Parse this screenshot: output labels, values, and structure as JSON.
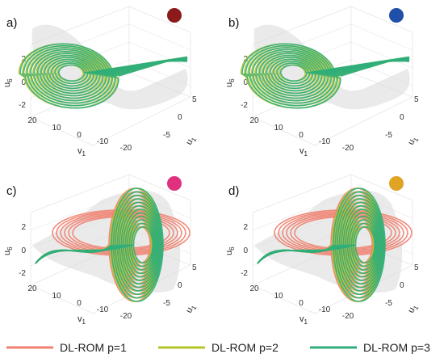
{
  "colors": {
    "p1": "#f07f6e",
    "p2": "#b5c428",
    "p3": "#2fae7b",
    "surface": "#d8d8d8",
    "grid": "#e6e6e6",
    "axis": "#555555"
  },
  "legend": {
    "items": [
      {
        "label": "DL-ROM p=1",
        "color": "#f07f6e"
      },
      {
        "label": "DL-ROM p=2",
        "color": "#b5c428"
      },
      {
        "label": "DL-ROM p=3",
        "color": "#2fae7b"
      }
    ]
  },
  "chart_data": [
    {
      "type": "line",
      "panel_label": "a)",
      "marker_color": "#8b1a1a",
      "view": "front",
      "xlabel": "v1",
      "ylabel": "u1",
      "zlabel": "u6",
      "xticks": [
        "20",
        "10",
        "0",
        "-10",
        "-20"
      ],
      "yticks": [
        "5",
        "0",
        "-5"
      ],
      "zticks": [
        "2",
        "0",
        "-2"
      ],
      "xlim": [
        -25,
        25
      ],
      "ylim": [
        -8,
        8
      ],
      "zlim": [
        -3,
        3
      ],
      "series": [
        {
          "name": "DL-ROM p=1",
          "visible": false
        },
        {
          "name": "DL-ROM p=2",
          "visible": true
        },
        {
          "name": "DL-ROM p=3",
          "visible": true
        }
      ]
    },
    {
      "type": "line",
      "panel_label": "b)",
      "marker_color": "#1f4fa8",
      "view": "front",
      "xlabel": "v1",
      "ylabel": "u1",
      "zlabel": "u6",
      "xticks": [
        "20",
        "10",
        "0",
        "-10",
        "-20"
      ],
      "yticks": [
        "5",
        "0",
        "-5"
      ],
      "zticks": [
        "2",
        "0",
        "-2"
      ],
      "xlim": [
        -25,
        25
      ],
      "ylim": [
        -8,
        8
      ],
      "zlim": [
        -3,
        3
      ],
      "series": [
        {
          "name": "DL-ROM p=1",
          "visible": false
        },
        {
          "name": "DL-ROM p=2",
          "visible": true
        },
        {
          "name": "DL-ROM p=3",
          "visible": true
        }
      ]
    },
    {
      "type": "line",
      "panel_label": "c)",
      "marker_color": "#e0317f",
      "view": "side",
      "xlabel": "v1",
      "ylabel": "u1",
      "zlabel": "u6",
      "xticks": [
        "20",
        "10",
        "0",
        "-10",
        "-20"
      ],
      "yticks": [
        "5",
        "0",
        "-5"
      ],
      "zticks": [
        "2",
        "0",
        "-2"
      ],
      "xlim": [
        -25,
        25
      ],
      "ylim": [
        -8,
        8
      ],
      "zlim": [
        -3,
        3
      ],
      "series": [
        {
          "name": "DL-ROM p=1",
          "visible": true
        },
        {
          "name": "DL-ROM p=2",
          "visible": true
        },
        {
          "name": "DL-ROM p=3",
          "visible": true
        }
      ]
    },
    {
      "type": "line",
      "panel_label": "d)",
      "marker_color": "#e0a324",
      "view": "side",
      "xlabel": "v1",
      "ylabel": "u1",
      "zlabel": "u6",
      "xticks": [
        "20",
        "10",
        "0",
        "-10",
        "-20"
      ],
      "yticks": [
        "5",
        "0",
        "-5"
      ],
      "zticks": [
        "2",
        "0",
        "-2"
      ],
      "xlim": [
        -25,
        25
      ],
      "ylim": [
        -8,
        8
      ],
      "zlim": [
        -3,
        3
      ],
      "series": [
        {
          "name": "DL-ROM p=1",
          "visible": true
        },
        {
          "name": "DL-ROM p=2",
          "visible": true
        },
        {
          "name": "DL-ROM p=3",
          "visible": true
        }
      ]
    }
  ]
}
